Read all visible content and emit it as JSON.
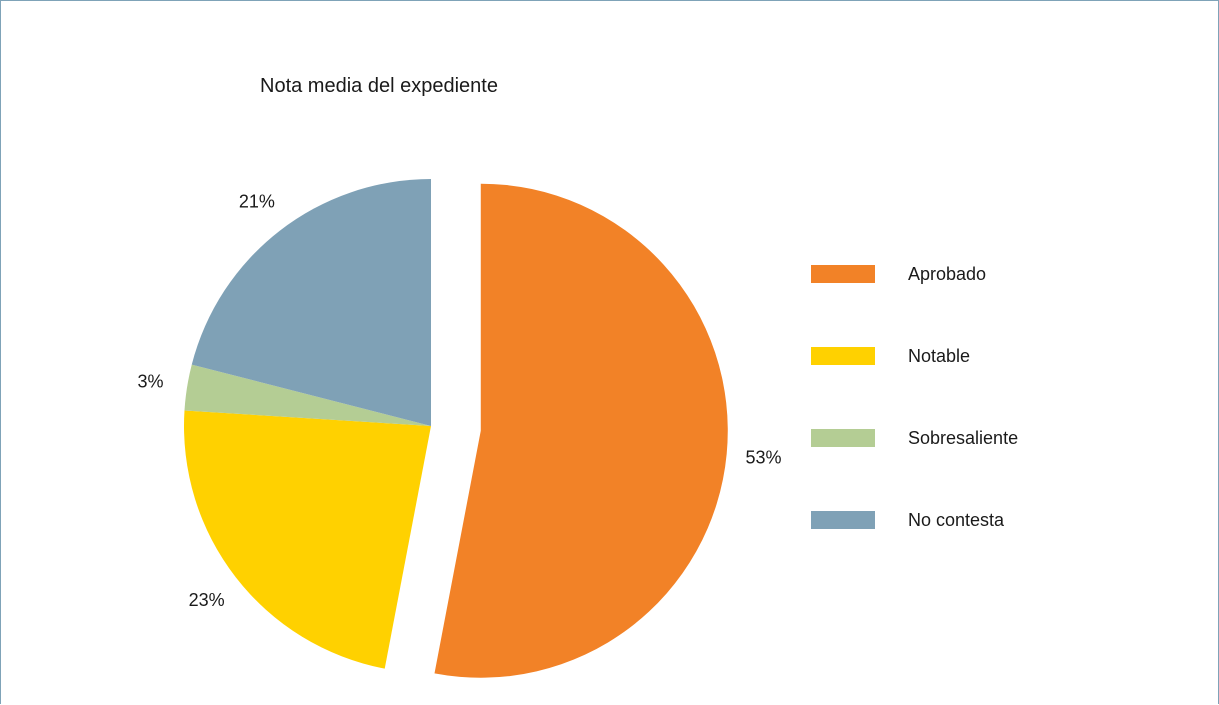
{
  "chart_data": {
    "type": "pie",
    "title": "Nota media del expediente",
    "slices": [
      {
        "label": "Aprobado",
        "value": 53,
        "display": "53%",
        "color": "#f28227",
        "exploded": true
      },
      {
        "label": "Notable",
        "value": 23,
        "display": "23%",
        "color": "#ffd100",
        "exploded": false
      },
      {
        "label": "Sobresaliente",
        "value": 3,
        "display": "3%",
        "color": "#b4cd94",
        "exploded": false
      },
      {
        "label": "No contesta",
        "value": 21,
        "display": "21%",
        "color": "#7fa1b6",
        "exploded": false
      }
    ],
    "legend_position": "right"
  }
}
